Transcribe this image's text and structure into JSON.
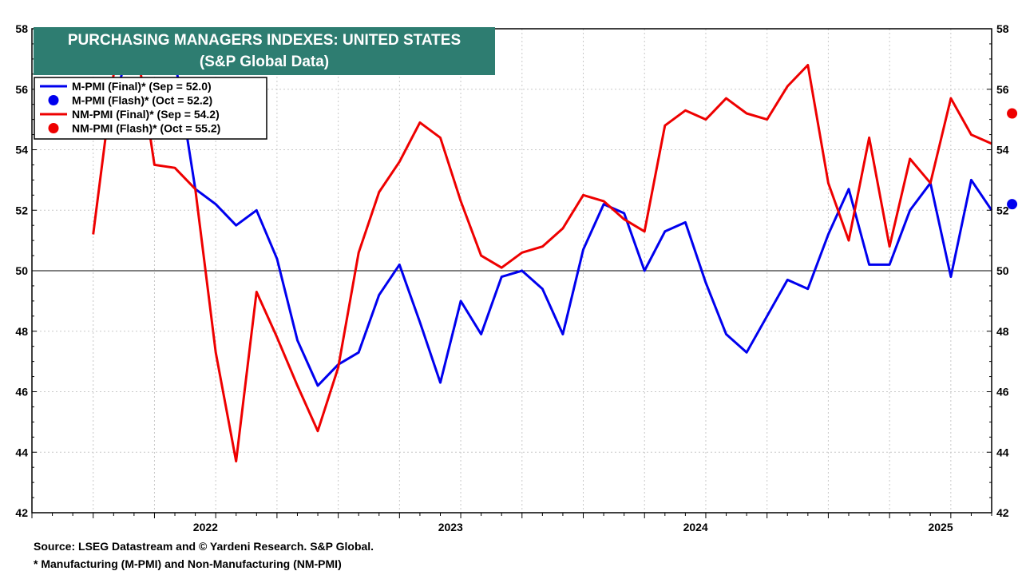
{
  "chart_data": {
    "type": "line",
    "title": "PURCHASING MANAGERS INDEXES: UNITED STATES",
    "subtitle": "(S&P Global Data)",
    "ylim": [
      42,
      58
    ],
    "y_ticks": [
      42,
      44,
      46,
      48,
      50,
      52,
      54,
      56,
      58
    ],
    "x_tick_labels": [
      "2022",
      "2023",
      "2024",
      "2025"
    ],
    "x_range": [
      "2021-10",
      "2025-09"
    ],
    "reference_line": 50,
    "grid": true,
    "legend_position": "top-left",
    "x": [
      "2022-01",
      "2022-02",
      "2022-03",
      "2022-04",
      "2022-05",
      "2022-06",
      "2022-07",
      "2022-08",
      "2022-09",
      "2022-10",
      "2022-11",
      "2022-12",
      "2023-01",
      "2023-02",
      "2023-03",
      "2023-04",
      "2023-05",
      "2023-06",
      "2023-07",
      "2023-08",
      "2023-09",
      "2023-10",
      "2023-11",
      "2023-12",
      "2024-01",
      "2024-02",
      "2024-03",
      "2024-04",
      "2024-05",
      "2024-06",
      "2024-07",
      "2024-08",
      "2024-09",
      "2024-10",
      "2024-11",
      "2024-12",
      "2025-01",
      "2025-02",
      "2025-03",
      "2025-04",
      "2025-05",
      "2025-06",
      "2025-07",
      "2025-08",
      "2025-09",
      "2025-10"
    ],
    "series": [
      {
        "name": "M-PMI (Final)* (Sep = 52.0)",
        "color": "#0000ee",
        "style": "line",
        "values": [
          55.5,
          55.5,
          58.8,
          59.2,
          57.0,
          52.7,
          52.2,
          51.5,
          52.0,
          50.4,
          47.7,
          46.2,
          46.9,
          47.3,
          49.2,
          50.2,
          48.3,
          46.3,
          49.0,
          47.9,
          49.8,
          50.0,
          49.4,
          47.9,
          50.7,
          52.2,
          51.9,
          50.0,
          51.3,
          51.6,
          49.6,
          47.9,
          47.3,
          48.5,
          49.7,
          49.4,
          51.2,
          52.7,
          50.2,
          50.2,
          52.0,
          52.9,
          49.8,
          53.0,
          52.0,
          null
        ]
      },
      {
        "name": "M-PMI (Flash)* (Oct = 52.2)",
        "color": "#0000ee",
        "style": "marker",
        "values": [
          null,
          null,
          null,
          null,
          null,
          null,
          null,
          null,
          null,
          null,
          null,
          null,
          null,
          null,
          null,
          null,
          null,
          null,
          null,
          null,
          null,
          null,
          null,
          null,
          null,
          null,
          null,
          null,
          null,
          null,
          null,
          null,
          null,
          null,
          null,
          null,
          null,
          null,
          null,
          null,
          null,
          null,
          null,
          null,
          null,
          52.2
        ]
      },
      {
        "name": "NM-PMI (Final)* (Sep = 54.2)",
        "color": "#ee0000",
        "style": "line",
        "values": [
          51.2,
          56.5,
          58.0,
          53.5,
          53.4,
          52.7,
          47.3,
          43.7,
          49.3,
          47.8,
          46.2,
          44.7,
          46.8,
          50.6,
          52.6,
          53.6,
          54.9,
          54.4,
          52.3,
          50.5,
          50.1,
          50.6,
          50.8,
          51.4,
          52.5,
          52.3,
          51.7,
          51.3,
          54.8,
          55.3,
          55.0,
          55.7,
          55.2,
          55.0,
          56.1,
          56.8,
          52.9,
          51.0,
          54.4,
          50.8,
          53.7,
          52.9,
          55.7,
          54.5,
          54.2,
          null
        ]
      },
      {
        "name": "NM-PMI (Flash)* (Oct = 55.2)",
        "color": "#ee0000",
        "style": "marker",
        "values": [
          null,
          null,
          null,
          null,
          null,
          null,
          null,
          null,
          null,
          null,
          null,
          null,
          null,
          null,
          null,
          null,
          null,
          null,
          null,
          null,
          null,
          null,
          null,
          null,
          null,
          null,
          null,
          null,
          null,
          null,
          null,
          null,
          null,
          null,
          null,
          null,
          null,
          null,
          null,
          null,
          null,
          null,
          null,
          null,
          null,
          55.2
        ]
      }
    ]
  },
  "footer": {
    "source": "Source: LSEG Datastream and © Yardeni Research. S&P Global.",
    "note": "* Manufacturing (M-PMI) and Non-Manufacturing (NM-PMI)"
  }
}
